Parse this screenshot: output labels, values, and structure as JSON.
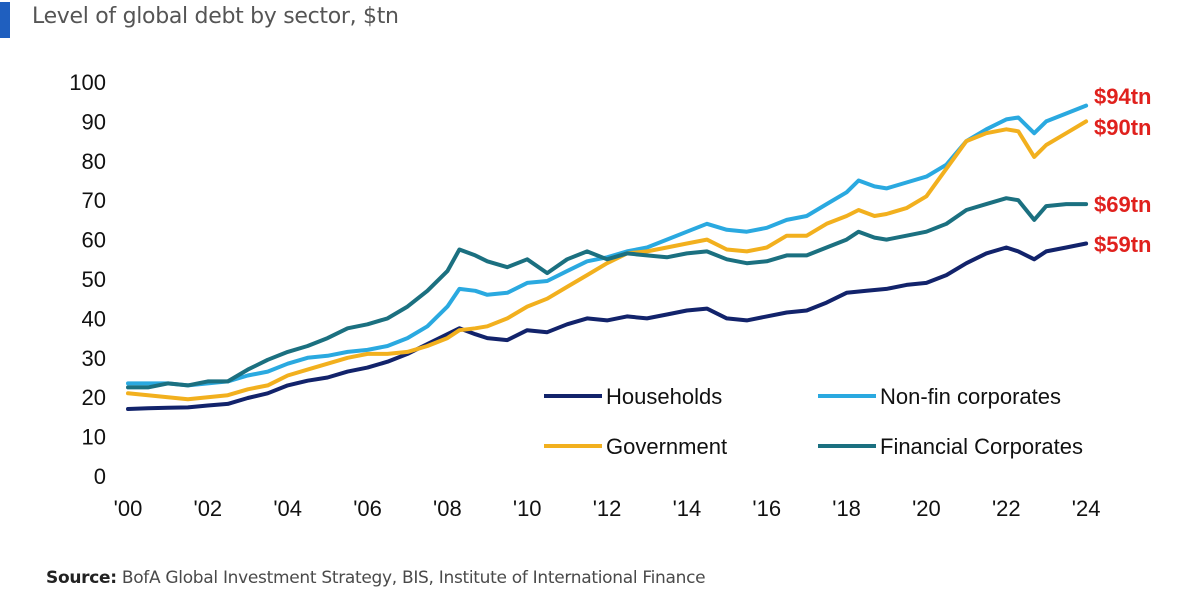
{
  "header": {
    "title": "Level of global debt by sector, $tn",
    "accent_color": "#1f5fbf"
  },
  "footer": {
    "source_label": "Source:",
    "source_text": "BofA Global Investment Strategy, BIS, Institute of International Finance"
  },
  "chart_data": {
    "type": "line",
    "title": "Level of global debt by sector, $tn",
    "xlabel": "",
    "ylabel": "",
    "xlim": [
      2000,
      2025.6
    ],
    "ylim": [
      0,
      100
    ],
    "yticks": [
      0,
      10,
      20,
      30,
      40,
      50,
      60,
      70,
      80,
      90,
      100
    ],
    "xticks": [
      {
        "value": 2000,
        "label": "'00"
      },
      {
        "value": 2002,
        "label": "'02"
      },
      {
        "value": 2004,
        "label": "'04"
      },
      {
        "value": 2006,
        "label": "'06"
      },
      {
        "value": 2008,
        "label": "'08"
      },
      {
        "value": 2010,
        "label": "'10"
      },
      {
        "value": 2012,
        "label": "'12"
      },
      {
        "value": 2014,
        "label": "'14"
      },
      {
        "value": 2016,
        "label": "'16"
      },
      {
        "value": 2018,
        "label": "'18"
      },
      {
        "value": 2020,
        "label": "'20"
      },
      {
        "value": 2022,
        "label": "'22"
      },
      {
        "value": 2024,
        "label": "'24"
      }
    ],
    "grid": false,
    "legend_position": "bottom-right",
    "series": [
      {
        "name": "Households",
        "color": "#12236b",
        "end_label": "$59tn",
        "points": [
          [
            2000,
            17
          ],
          [
            2000.5,
            17.2
          ],
          [
            2001,
            17.3
          ],
          [
            2001.5,
            17.4
          ],
          [
            2002,
            17.9
          ],
          [
            2002.5,
            18.3
          ],
          [
            2003,
            19.8
          ],
          [
            2003.5,
            21
          ],
          [
            2004,
            23
          ],
          [
            2004.5,
            24.2
          ],
          [
            2005,
            25
          ],
          [
            2005.5,
            26.5
          ],
          [
            2006,
            27.5
          ],
          [
            2006.5,
            29
          ],
          [
            2007,
            31
          ],
          [
            2007.5,
            33.5
          ],
          [
            2008,
            36
          ],
          [
            2008.3,
            37.5
          ],
          [
            2008.7,
            36
          ],
          [
            2009,
            35
          ],
          [
            2009.5,
            34.5
          ],
          [
            2010,
            37
          ],
          [
            2010.5,
            36.5
          ],
          [
            2011,
            38.5
          ],
          [
            2011.5,
            40
          ],
          [
            2012,
            39.5
          ],
          [
            2012.5,
            40.5
          ],
          [
            2013,
            40
          ],
          [
            2013.5,
            41
          ],
          [
            2014,
            42
          ],
          [
            2014.5,
            42.5
          ],
          [
            2015,
            40
          ],
          [
            2015.5,
            39.5
          ],
          [
            2016,
            40.5
          ],
          [
            2016.5,
            41.5
          ],
          [
            2017,
            42
          ],
          [
            2017.5,
            44
          ],
          [
            2018,
            46.5
          ],
          [
            2018.5,
            47
          ],
          [
            2019,
            47.5
          ],
          [
            2019.5,
            48.5
          ],
          [
            2020,
            49
          ],
          [
            2020.5,
            51
          ],
          [
            2021,
            54
          ],
          [
            2021.5,
            56.5
          ],
          [
            2022,
            58
          ],
          [
            2022.3,
            57
          ],
          [
            2022.7,
            55
          ],
          [
            2023,
            57
          ],
          [
            2023.5,
            58
          ],
          [
            2024,
            59
          ]
        ]
      },
      {
        "name": "Non-fin corporates",
        "color": "#2aa9e0",
        "end_label": "$94tn",
        "points": [
          [
            2000,
            23.5
          ],
          [
            2000.5,
            23.5
          ],
          [
            2001,
            23.5
          ],
          [
            2001.5,
            23
          ],
          [
            2002,
            23.5
          ],
          [
            2002.5,
            24
          ],
          [
            2003,
            25.5
          ],
          [
            2003.5,
            26.5
          ],
          [
            2004,
            28.5
          ],
          [
            2004.5,
            30
          ],
          [
            2005,
            30.5
          ],
          [
            2005.5,
            31.5
          ],
          [
            2006,
            32
          ],
          [
            2006.5,
            33
          ],
          [
            2007,
            35
          ],
          [
            2007.5,
            38
          ],
          [
            2008,
            43
          ],
          [
            2008.3,
            47.5
          ],
          [
            2008.7,
            47
          ],
          [
            2009,
            46
          ],
          [
            2009.5,
            46.5
          ],
          [
            2010,
            49
          ],
          [
            2010.5,
            49.5
          ],
          [
            2011,
            52
          ],
          [
            2011.5,
            54.5
          ],
          [
            2012,
            55.5
          ],
          [
            2012.5,
            57
          ],
          [
            2013,
            58
          ],
          [
            2013.5,
            60
          ],
          [
            2014,
            62
          ],
          [
            2014.5,
            64
          ],
          [
            2015,
            62.5
          ],
          [
            2015.5,
            62
          ],
          [
            2016,
            63
          ],
          [
            2016.5,
            65
          ],
          [
            2017,
            66
          ],
          [
            2017.5,
            69
          ],
          [
            2018,
            72
          ],
          [
            2018.3,
            75
          ],
          [
            2018.7,
            73.5
          ],
          [
            2019,
            73
          ],
          [
            2019.5,
            74.5
          ],
          [
            2020,
            76
          ],
          [
            2020.5,
            79
          ],
          [
            2021,
            85
          ],
          [
            2021.5,
            88
          ],
          [
            2022,
            90.5
          ],
          [
            2022.3,
            91
          ],
          [
            2022.7,
            87
          ],
          [
            2023,
            90
          ],
          [
            2023.5,
            92
          ],
          [
            2024,
            94
          ]
        ]
      },
      {
        "name": "Government",
        "color": "#f2b01e",
        "end_label": "$90tn",
        "points": [
          [
            2000,
            21
          ],
          [
            2000.5,
            20.5
          ],
          [
            2001,
            20
          ],
          [
            2001.5,
            19.5
          ],
          [
            2002,
            20
          ],
          [
            2002.5,
            20.5
          ],
          [
            2003,
            22
          ],
          [
            2003.5,
            23
          ],
          [
            2004,
            25.5
          ],
          [
            2004.5,
            27
          ],
          [
            2005,
            28.5
          ],
          [
            2005.5,
            30
          ],
          [
            2006,
            31
          ],
          [
            2006.5,
            31
          ],
          [
            2007,
            31.5
          ],
          [
            2007.5,
            33
          ],
          [
            2008,
            35
          ],
          [
            2008.3,
            37
          ],
          [
            2008.7,
            37.5
          ],
          [
            2009,
            38
          ],
          [
            2009.5,
            40
          ],
          [
            2010,
            43
          ],
          [
            2010.5,
            45
          ],
          [
            2011,
            48
          ],
          [
            2011.5,
            51
          ],
          [
            2012,
            54
          ],
          [
            2012.5,
            56.5
          ],
          [
            2013,
            57
          ],
          [
            2013.5,
            58
          ],
          [
            2014,
            59
          ],
          [
            2014.5,
            60
          ],
          [
            2015,
            57.5
          ],
          [
            2015.5,
            57
          ],
          [
            2016,
            58
          ],
          [
            2016.5,
            61
          ],
          [
            2017,
            61
          ],
          [
            2017.5,
            64
          ],
          [
            2018,
            66
          ],
          [
            2018.3,
            67.5
          ],
          [
            2018.7,
            66
          ],
          [
            2019,
            66.5
          ],
          [
            2019.5,
            68
          ],
          [
            2020,
            71
          ],
          [
            2020.5,
            78
          ],
          [
            2021,
            85
          ],
          [
            2021.5,
            87
          ],
          [
            2022,
            88
          ],
          [
            2022.3,
            87.5
          ],
          [
            2022.7,
            81
          ],
          [
            2023,
            84
          ],
          [
            2023.5,
            87
          ],
          [
            2024,
            90
          ]
        ]
      },
      {
        "name": "Financial Corporates",
        "color": "#1b7080",
        "end_label": "$69tn",
        "points": [
          [
            2000,
            22.5
          ],
          [
            2000.5,
            22.5
          ],
          [
            2001,
            23.5
          ],
          [
            2001.5,
            23
          ],
          [
            2002,
            24
          ],
          [
            2002.5,
            24
          ],
          [
            2003,
            27
          ],
          [
            2003.5,
            29.5
          ],
          [
            2004,
            31.5
          ],
          [
            2004.5,
            33
          ],
          [
            2005,
            35
          ],
          [
            2005.5,
            37.5
          ],
          [
            2006,
            38.5
          ],
          [
            2006.5,
            40
          ],
          [
            2007,
            43
          ],
          [
            2007.5,
            47
          ],
          [
            2008,
            52
          ],
          [
            2008.3,
            57.5
          ],
          [
            2008.7,
            56
          ],
          [
            2009,
            54.5
          ],
          [
            2009.5,
            53
          ],
          [
            2010,
            55
          ],
          [
            2010.5,
            51.5
          ],
          [
            2011,
            55
          ],
          [
            2011.5,
            57
          ],
          [
            2012,
            55
          ],
          [
            2012.5,
            56.5
          ],
          [
            2013,
            56
          ],
          [
            2013.5,
            55.5
          ],
          [
            2014,
            56.5
          ],
          [
            2014.5,
            57
          ],
          [
            2015,
            55
          ],
          [
            2015.5,
            54
          ],
          [
            2016,
            54.5
          ],
          [
            2016.5,
            56
          ],
          [
            2017,
            56
          ],
          [
            2017.5,
            58
          ],
          [
            2018,
            60
          ],
          [
            2018.3,
            62
          ],
          [
            2018.7,
            60.5
          ],
          [
            2019,
            60
          ],
          [
            2019.5,
            61
          ],
          [
            2020,
            62
          ],
          [
            2020.5,
            64
          ],
          [
            2021,
            67.5
          ],
          [
            2021.5,
            69
          ],
          [
            2022,
            70.5
          ],
          [
            2022.3,
            70
          ],
          [
            2022.7,
            65
          ],
          [
            2023,
            68.5
          ],
          [
            2023.5,
            69
          ],
          [
            2024,
            69
          ]
        ]
      }
    ]
  }
}
